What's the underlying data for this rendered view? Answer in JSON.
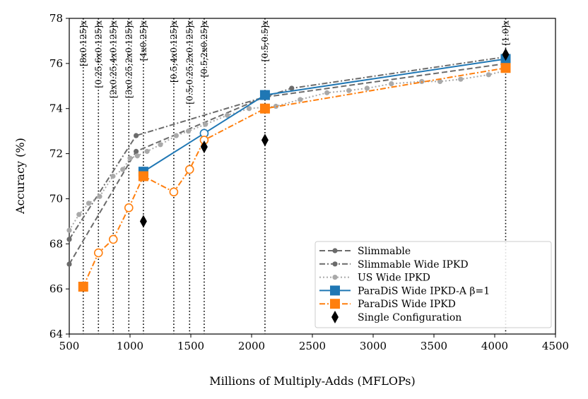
{
  "chart_data": {
    "type": "line",
    "title": "",
    "xlabel": "Millions of Multiply-Adds (MFLOPs)",
    "ylabel": "Accuracy (%)",
    "xlim": [
      500,
      4500
    ],
    "ylim": [
      64,
      78
    ],
    "xticks": [
      500,
      1000,
      1500,
      2000,
      2500,
      3000,
      3500,
      4000,
      4500
    ],
    "yticks": [
      64,
      66,
      68,
      70,
      72,
      74,
      76,
      78
    ],
    "grid": false,
    "legend_position": "lower-right",
    "config_lines": [
      {
        "x": 615,
        "label": "[8x0.125]x"
      },
      {
        "x": 740,
        "label": "[0.25;6x0.125]x"
      },
      {
        "x": 862,
        "label": "[2x0.25;4x0.125]x"
      },
      {
        "x": 990,
        "label": "[3x0.25;2x0.125]x"
      },
      {
        "x": 1110,
        "label": "[4x0.25]x"
      },
      {
        "x": 1360,
        "label": "[0.5;4x0.125]x"
      },
      {
        "x": 1490,
        "label": "[0.5;0.25;2x0.125]x"
      },
      {
        "x": 1610,
        "label": "[0.5;2x0.25]x"
      },
      {
        "x": 2110,
        "label": "[0.5;0.5]x"
      },
      {
        "x": 4090,
        "label": "[1.0]x"
      }
    ],
    "series": [
      {
        "name": "Slimmable",
        "color": "#6b6b6b",
        "style": "dashed",
        "marker": "dot",
        "points": [
          [
            500,
            67.1
          ],
          [
            1050,
            72.1
          ],
          [
            2100,
            74.5
          ],
          [
            4100,
            76.0
          ]
        ]
      },
      {
        "name": "Slimmable Wide IPKD",
        "color": "#6b6b6b",
        "style": "dashdot",
        "marker": "dot",
        "points": [
          [
            500,
            68.2
          ],
          [
            1050,
            72.8
          ],
          [
            2100,
            74.5
          ],
          [
            2330,
            74.9
          ],
          [
            4100,
            76.3
          ]
        ]
      },
      {
        "name": "US Wide IPKD",
        "color": "#a9a9a9",
        "style": "dotted",
        "marker": "dot",
        "points": [
          [
            500,
            68.6
          ],
          [
            580,
            69.3
          ],
          [
            660,
            69.8
          ],
          [
            750,
            70.1
          ],
          [
            860,
            71.0
          ],
          [
            940,
            71.3
          ],
          [
            1000,
            71.8
          ],
          [
            1060,
            71.9
          ],
          [
            1140,
            72.1
          ],
          [
            1250,
            72.4
          ],
          [
            1380,
            72.8
          ],
          [
            1480,
            73.0
          ],
          [
            1620,
            73.3
          ],
          [
            1800,
            73.7
          ],
          [
            1980,
            74.0
          ],
          [
            2200,
            74.1
          ],
          [
            2400,
            74.4
          ],
          [
            2620,
            74.7
          ],
          [
            2800,
            74.8
          ],
          [
            2950,
            74.9
          ],
          [
            3150,
            75.1
          ],
          [
            3400,
            75.2
          ],
          [
            3550,
            75.2
          ],
          [
            3720,
            75.3
          ],
          [
            3950,
            75.5
          ],
          [
            4100,
            75.7
          ]
        ]
      },
      {
        "name": "ParaDiS Wide IPKD-A β=1",
        "color": "#1f77b4",
        "style": "solid",
        "marker": "square",
        "points": [
          [
            1110,
            71.2
          ],
          [
            1610,
            72.9
          ],
          [
            2110,
            74.6
          ],
          [
            4090,
            76.2
          ]
        ],
        "open_points": [
          [
            1610,
            72.9
          ]
        ]
      },
      {
        "name": "ParaDiS Wide IPKD",
        "color": "#ff7f0e",
        "style": "dashdot",
        "marker": "square",
        "points": [
          [
            615,
            66.1
          ],
          [
            740,
            67.6
          ],
          [
            862,
            68.2
          ],
          [
            990,
            69.6
          ],
          [
            1110,
            71.0
          ],
          [
            1360,
            70.3
          ],
          [
            1490,
            71.3
          ],
          [
            1610,
            72.6
          ],
          [
            2110,
            74.0
          ],
          [
            4090,
            75.8
          ]
        ],
        "open_points": [
          [
            740,
            67.6
          ],
          [
            862,
            68.2
          ],
          [
            990,
            69.6
          ],
          [
            1360,
            70.3
          ],
          [
            1490,
            71.3
          ],
          [
            1610,
            72.6
          ]
        ]
      },
      {
        "name": "Single Configuration",
        "color": "#000000",
        "style": "none",
        "marker": "diamond",
        "points": [
          [
            1110,
            69.0
          ],
          [
            1610,
            72.3
          ],
          [
            2110,
            72.6
          ],
          [
            4090,
            76.4
          ]
        ]
      }
    ]
  }
}
